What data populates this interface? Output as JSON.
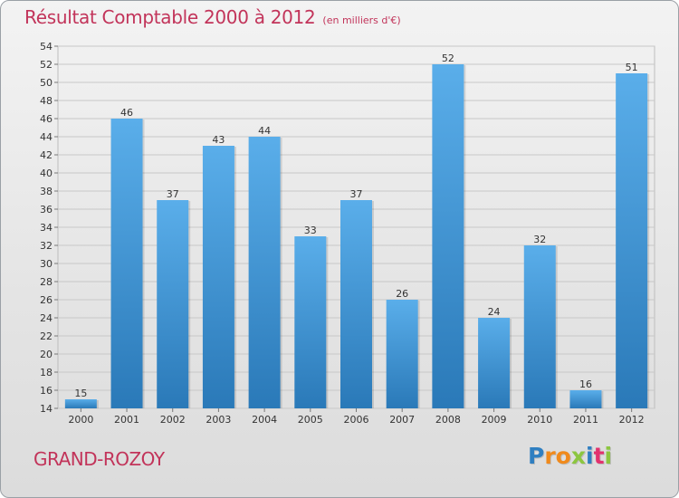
{
  "header": {
    "title": "Résultat Comptable 2000 à 2012",
    "subtitle": "(en milliers d'€)"
  },
  "footer": {
    "commune": "GRAND-ROZOY",
    "logo": {
      "text": "Proxiti",
      "letters": [
        {
          "char": "P",
          "color": "#2f7fc1"
        },
        {
          "char": "r",
          "color": "#f08a1c"
        },
        {
          "char": "o",
          "color": "#f08a1c"
        },
        {
          "char": "x",
          "color": "#8cc63f"
        },
        {
          "char": "i",
          "color": "#2f7fc1"
        },
        {
          "char": "t",
          "color": "#e2326e"
        },
        {
          "char": "i",
          "color": "#8cc63f"
        }
      ]
    }
  },
  "colors": {
    "accent": "#c2345a",
    "bar_light": "#5aaeea",
    "bar_dark": "#2a79b8",
    "grid": "#c8c8c8"
  },
  "chart_data": {
    "type": "bar",
    "title": "Résultat Comptable 2000 à 2012",
    "subtitle": "(en milliers d'€)",
    "categories": [
      "2000",
      "2001",
      "2002",
      "2003",
      "2004",
      "2005",
      "2006",
      "2007",
      "2008",
      "2009",
      "2010",
      "2011",
      "2012"
    ],
    "values": [
      15,
      46,
      37,
      43,
      44,
      33,
      37,
      26,
      52,
      24,
      32,
      16,
      51
    ],
    "ylim": [
      14,
      54
    ],
    "yticks": [
      14,
      16,
      18,
      20,
      22,
      24,
      26,
      28,
      30,
      32,
      34,
      36,
      38,
      40,
      42,
      44,
      46,
      48,
      50,
      52,
      54
    ],
    "grid": true,
    "data_labels": true
  }
}
